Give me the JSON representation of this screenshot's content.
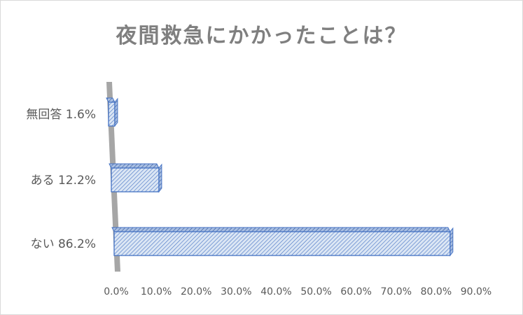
{
  "chart_data": {
    "type": "bar",
    "orientation": "horizontal",
    "title": "夜間救急にかかったことは？",
    "categories": [
      "無回答 1.6%",
      "ある 12.2%",
      "ない 86.2%"
    ],
    "values": [
      1.6,
      12.2,
      86.2
    ],
    "xlim": [
      0,
      90
    ],
    "ticks": [
      "0.0%",
      "10.0%",
      "20.0%",
      "30.0%",
      "40.0%",
      "50.0%",
      "60.0%",
      "70.0%",
      "80.0%",
      "90.0%"
    ],
    "tick_values": [
      0,
      10,
      20,
      30,
      40,
      50,
      60,
      70,
      80,
      90
    ],
    "grid": false,
    "legend": "none",
    "bar_fill": "#dbe6f4",
    "bar_stroke": "#4472c4",
    "axis_wall_color": "#a6a6a6"
  }
}
